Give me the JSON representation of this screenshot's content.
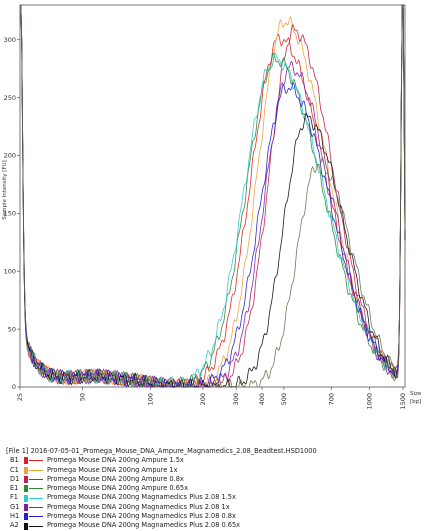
{
  "chart_data": {
    "type": "line",
    "ylabel": "Sample Intensity [FU]",
    "xlabel": "Size",
    "xunit": "[bp]",
    "ylim": [
      0,
      330
    ],
    "yticks": [
      0,
      50,
      100,
      150,
      200,
      250,
      300
    ],
    "xticks": [
      {
        "label": "25",
        "pos": 0.0
      },
      {
        "label": "50",
        "pos": 0.1627
      },
      {
        "label": "100",
        "pos": 0.3386
      },
      {
        "label": "200",
        "pos": 0.4751
      },
      {
        "label": "300",
        "pos": 0.5616
      },
      {
        "label": "400",
        "pos": 0.6286
      },
      {
        "label": "500",
        "pos": 0.6853
      },
      {
        "label": "700",
        "pos": 0.8085
      },
      {
        "label": "1000",
        "pos": 0.9081
      },
      {
        "label": "1500",
        "pos": 0.9948
      }
    ],
    "grid": false,
    "legend_title": "[File 1] 2016-07-05-01_Promega_Mouse_DNA_Ampure_Magnamedics_2.08_Beadtest.HSD1000",
    "series": [
      {
        "well": "B1",
        "name": "Promega Mouse DNA 200ng Ampure 1.5x",
        "color": "#e02020",
        "peak_x": 0.675,
        "peak_y": 301,
        "width": 0.105
      },
      {
        "well": "C1",
        "name": "Promega Mouse DNA 200ng Ampure 1x",
        "color": "#f0a030",
        "peak_x": 0.688,
        "peak_y": 316,
        "width": 0.098
      },
      {
        "well": "D1",
        "name": "Promega Mouse DNA 200ng Ampure 0.8x",
        "color": "#c02050",
        "peak_x": 0.712,
        "peak_y": 308,
        "width": 0.09
      },
      {
        "well": "E1",
        "name": "Promega Mouse DNA 200ng Ampure 0.65x",
        "color": "#2a8a3a",
        "peak_x": 0.664,
        "peak_y": 283,
        "width": 0.108
      },
      {
        "well": "F1",
        "name": "Promega Mouse DNA 200ng Magnamedics Plus 2.08 1.5x",
        "color": "#30c8d0",
        "peak_x": 0.662,
        "peak_y": 283,
        "width": 0.112
      },
      {
        "well": "G1",
        "name": "Promega Mouse DNA 200ng Magnamedics Plus 2.08 1x",
        "color": "#8020a0",
        "peak_x": 0.703,
        "peak_y": 276,
        "width": 0.094
      },
      {
        "well": "H1",
        "name": "Promega Mouse DNA 200ng Magnamedics Plus 2.08 0.8x",
        "color": "#2020d0",
        "peak_x": 0.695,
        "peak_y": 259,
        "width": 0.1
      },
      {
        "well": "A2",
        "name": "Promega Mouse DNA 200ng Magnamedics Plus 2.08 0.65x",
        "color": "#101010",
        "peak_x": 0.745,
        "peak_y": 232,
        "width": 0.085
      },
      {
        "well": "",
        "name": "",
        "color": "#707050",
        "peak_x": 0.775,
        "peak_y": 193,
        "width": 0.078
      }
    ]
  },
  "legend": {
    "title": "[File 1] 2016-07-05-01_Promega_Mouse_DNA_Ampure_Magnamedics_2.08_Beadtest.HSD1000",
    "items": [
      {
        "well": "B1",
        "color": "#e02020",
        "label": "Promega Mouse DNA 200ng Ampure 1.5x"
      },
      {
        "well": "C1",
        "color": "#f0a030",
        "label": "Promega Mouse DNA 200ng Ampure 1x"
      },
      {
        "well": "D1",
        "color": "#c02050",
        "label": "Promega Mouse DNA 200ng Ampure 0.8x"
      },
      {
        "well": "E1",
        "color": "#2a8a3a",
        "label": "Promega Mouse DNA 200ng Ampure 0.65x"
      },
      {
        "well": "F1",
        "color": "#30c8d0",
        "label": "Promega Mouse DNA 200ng Magnamedics Plus 2.08 1.5x"
      },
      {
        "well": "G1",
        "color": "#8020a0",
        "label": "Promega Mouse DNA 200ng Magnamedics Plus 2.08 1x"
      },
      {
        "well": "H1",
        "color": "#2020d0",
        "label": "Promega Mouse DNA 200ng Magnamedics Plus 2.08 0.8x"
      },
      {
        "well": "A2",
        "color": "#101010",
        "label": "Promega Mouse DNA 200ng Magnamedics Plus 2.08 0.65x"
      }
    ]
  }
}
